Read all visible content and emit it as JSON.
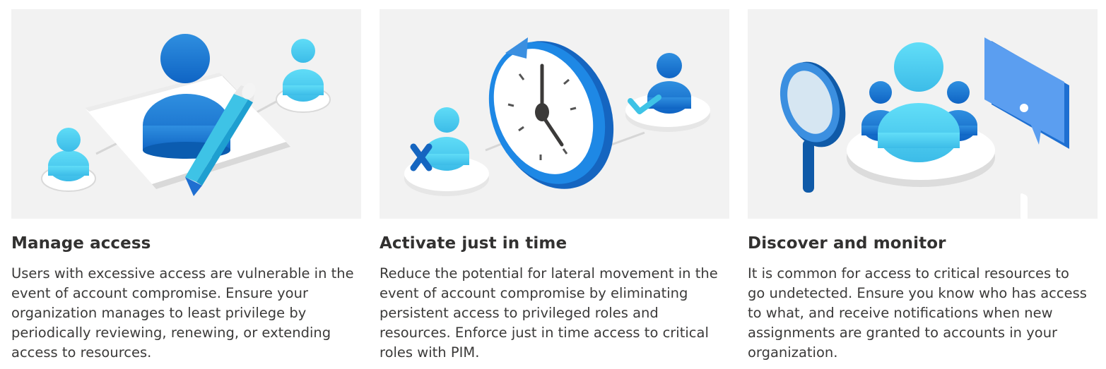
{
  "cards": [
    {
      "title": "Manage access",
      "description_lines": [
        "Users with excessive access are vulnerable in the",
        "event of account compromise. Ensure your",
        "organization manages to least privilege by",
        "periodically reviewing, renewing, or extending",
        "access to resources."
      ],
      "illustration_icons": [
        "user-icon",
        "pencil-icon",
        "document-icon"
      ]
    },
    {
      "title": "Activate just in time",
      "description_lines": [
        "Reduce the potential for lateral movement in the",
        "event of account compromise by eliminating",
        "persistent access to privileged roles and",
        "resources. Enforce just in time access to critical",
        "roles with PIM."
      ],
      "illustration_icons": [
        "clock-icon",
        "user-icon",
        "checkmark-icon",
        "x-icon"
      ]
    },
    {
      "title": "Discover and monitor",
      "description_lines": [
        "It is common for access to critical resources to",
        "go undetected. Ensure you know who has access",
        "to what, and receive notifications when new",
        "assignments are granted to accounts in your",
        "organization."
      ],
      "illustration_icons": [
        "magnifier-icon",
        "user-group-icon",
        "alert-icon"
      ]
    }
  ],
  "colors": {
    "panel_bg": "#f2f2f2",
    "blue_dark": "#0f6cbd",
    "blue_mid": "#1e88e5",
    "blue_light": "#50d0f5",
    "text": "#323130"
  }
}
